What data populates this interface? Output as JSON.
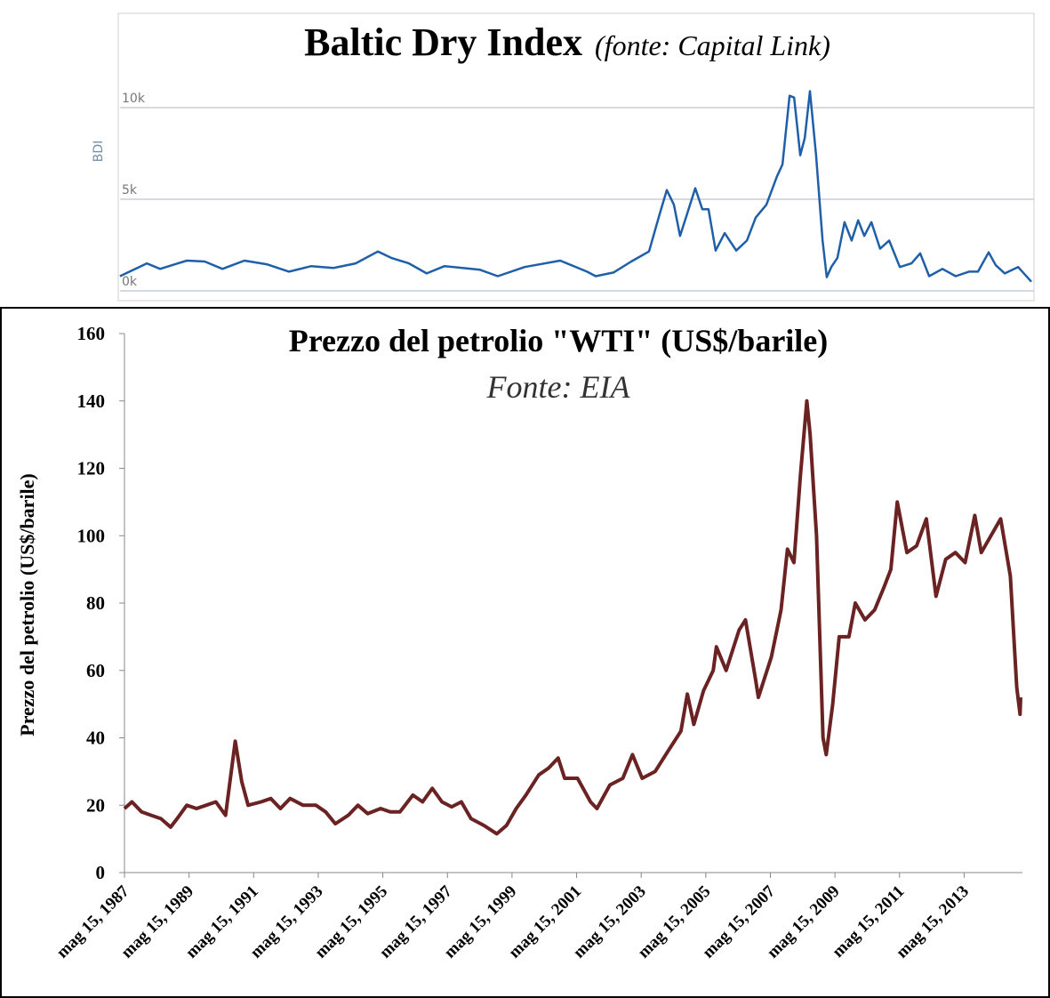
{
  "chart_data": [
    {
      "type": "line",
      "title": "Baltic Dry Index",
      "subtitle": "(fonte: Capital Link)",
      "ylabel": "BDI",
      "color": "#1f5fa8",
      "grid": true,
      "xlim": [
        1987.23,
        2015.43
      ],
      "ylim": [
        0,
        15000
      ],
      "yticks": [
        {
          "value": 0,
          "label": "0k"
        },
        {
          "value": 5000,
          "label": "5k"
        },
        {
          "value": 10000,
          "label": "10k"
        }
      ],
      "x": [
        1987.23,
        1988.06,
        1988.47,
        1989.02,
        1989.3,
        1989.85,
        1990.4,
        1991.08,
        1991.77,
        1992.46,
        1993.15,
        1993.83,
        1994.52,
        1995.21,
        1995.62,
        1996.17,
        1996.72,
        1997.27,
        1998.37,
        1998.92,
        1999.75,
        2000.85,
        2001.68,
        2001.95,
        2002.5,
        2003.05,
        2003.6,
        2003.93,
        2004.15,
        2004.37,
        2004.56,
        2004.76,
        2005.03,
        2005.25,
        2005.44,
        2005.66,
        2005.94,
        2006.3,
        2006.63,
        2006.9,
        2007.23,
        2007.56,
        2007.73,
        2007.95,
        2008.09,
        2008.28,
        2008.42,
        2008.58,
        2008.77,
        2008.97,
        2009.1,
        2009.24,
        2009.43,
        2009.65,
        2009.87,
        2010.07,
        2010.26,
        2010.48,
        2010.75,
        2011.03,
        2011.36,
        2011.72,
        2011.99,
        2012.27,
        2012.68,
        2013.09,
        2013.5,
        2013.78,
        2014.11,
        2014.33,
        2014.61,
        2015.02,
        2015.43
      ],
      "values": [
        800,
        1500,
        1200,
        1500,
        1650,
        1600,
        1200,
        1650,
        1450,
        1050,
        1350,
        1250,
        1500,
        2150,
        1800,
        1500,
        950,
        1350,
        1150,
        800,
        1300,
        1650,
        1050,
        800,
        1000,
        1600,
        2150,
        4200,
        5500,
        4700,
        3000,
        4100,
        5600,
        4450,
        4450,
        2200,
        3150,
        2200,
        2750,
        4000,
        4700,
        6250,
        6900,
        10650,
        10550,
        7400,
        8350,
        10900,
        7400,
        2750,
        750,
        1300,
        1800,
        3750,
        2750,
        3850,
        3000,
        3750,
        2300,
        2750,
        1300,
        1500,
        2050,
        800,
        1200,
        800,
        1050,
        1050,
        2100,
        1400,
        950,
        1300,
        500
      ]
    },
    {
      "type": "line",
      "title": "Prezzo del petrolio \"WTI\" (US$/barile)",
      "subtitle": "Fonte: EIA",
      "ylabel": "Prezzo del petrolio (US$/barile)",
      "color": "#6b2222",
      "grid": false,
      "xlim": [
        1987.37,
        2015.12
      ],
      "ylim": [
        0,
        160
      ],
      "yticks": [
        0,
        20,
        40,
        60,
        80,
        100,
        120,
        140,
        160
      ],
      "xticks": [
        {
          "value": 1987.37,
          "label": "mag 15, 1987"
        },
        {
          "value": 1989.37,
          "label": "mag 15, 1989"
        },
        {
          "value": 1991.37,
          "label": "mag 15, 1991"
        },
        {
          "value": 1993.37,
          "label": "mag 15, 1993"
        },
        {
          "value": 1995.37,
          "label": "mag 15, 1995"
        },
        {
          "value": 1997.37,
          "label": "mag 15, 1997"
        },
        {
          "value": 1999.37,
          "label": "mag 15, 1999"
        },
        {
          "value": 2001.37,
          "label": "mag 15, 2001"
        },
        {
          "value": 2003.37,
          "label": "mag 15, 2003"
        },
        {
          "value": 2005.37,
          "label": "mag 15, 2005"
        },
        {
          "value": 2007.37,
          "label": "mag 15, 2007"
        },
        {
          "value": 2009.37,
          "label": "mag 15, 2009"
        },
        {
          "value": 2011.37,
          "label": "mag 15, 2011"
        },
        {
          "value": 2013.37,
          "label": "mag 15, 2013"
        }
      ],
      "x": [
        1987.37,
        1987.6,
        1987.9,
        1988.2,
        1988.5,
        1988.8,
        1989.0,
        1989.3,
        1989.6,
        1989.9,
        1990.2,
        1990.5,
        1990.8,
        1991.0,
        1991.2,
        1991.6,
        1991.9,
        1992.2,
        1992.5,
        1992.9,
        1993.3,
        1993.6,
        1993.9,
        1994.3,
        1994.6,
        1994.9,
        1995.3,
        1995.6,
        1995.9,
        1996.3,
        1996.6,
        1996.9,
        1997.2,
        1997.5,
        1997.8,
        1998.1,
        1998.5,
        1998.9,
        1999.2,
        1999.5,
        1999.8,
        2000.2,
        2000.5,
        2000.8,
        2001.0,
        2001.4,
        2001.8,
        2002.0,
        2002.4,
        2002.8,
        2003.1,
        2003.4,
        2003.8,
        2004.2,
        2004.6,
        2004.8,
        2005.0,
        2005.3,
        2005.6,
        2005.7,
        2006.0,
        2006.4,
        2006.6,
        2006.9,
        2007.0,
        2007.4,
        2007.7,
        2007.9,
        2008.1,
        2008.3,
        2008.5,
        2008.6,
        2008.8,
        2009.0,
        2009.1,
        2009.3,
        2009.5,
        2009.8,
        2010.0,
        2010.3,
        2010.6,
        2010.9,
        2011.1,
        2011.3,
        2011.6,
        2011.9,
        2012.2,
        2012.5,
        2012.8,
        2013.1,
        2013.4,
        2013.7,
        2013.9,
        2014.2,
        2014.5,
        2014.8,
        2015.0,
        2015.1,
        2015.12
      ],
      "values": [
        19,
        21,
        18,
        17,
        16,
        13.5,
        16,
        20,
        19,
        20,
        21,
        17,
        39,
        27,
        20,
        21,
        22,
        19,
        22,
        20,
        20,
        18,
        14.5,
        17,
        20,
        17.5,
        19,
        18,
        18,
        23,
        21,
        25,
        21,
        19.5,
        21,
        16,
        14,
        11.5,
        14,
        19,
        23,
        29,
        31,
        34,
        28,
        28,
        21,
        19,
        26,
        28,
        35,
        28,
        30,
        36,
        42,
        53,
        44,
        54,
        60,
        67,
        60,
        72,
        75,
        58,
        52,
        64,
        78,
        96,
        92,
        118,
        140,
        130,
        100,
        40,
        35,
        50,
        70,
        70,
        80,
        75,
        78,
        85,
        90,
        110,
        95,
        97,
        105,
        82,
        93,
        95,
        92,
        106,
        95,
        100,
        105,
        88,
        55,
        47,
        52
      ]
    }
  ]
}
